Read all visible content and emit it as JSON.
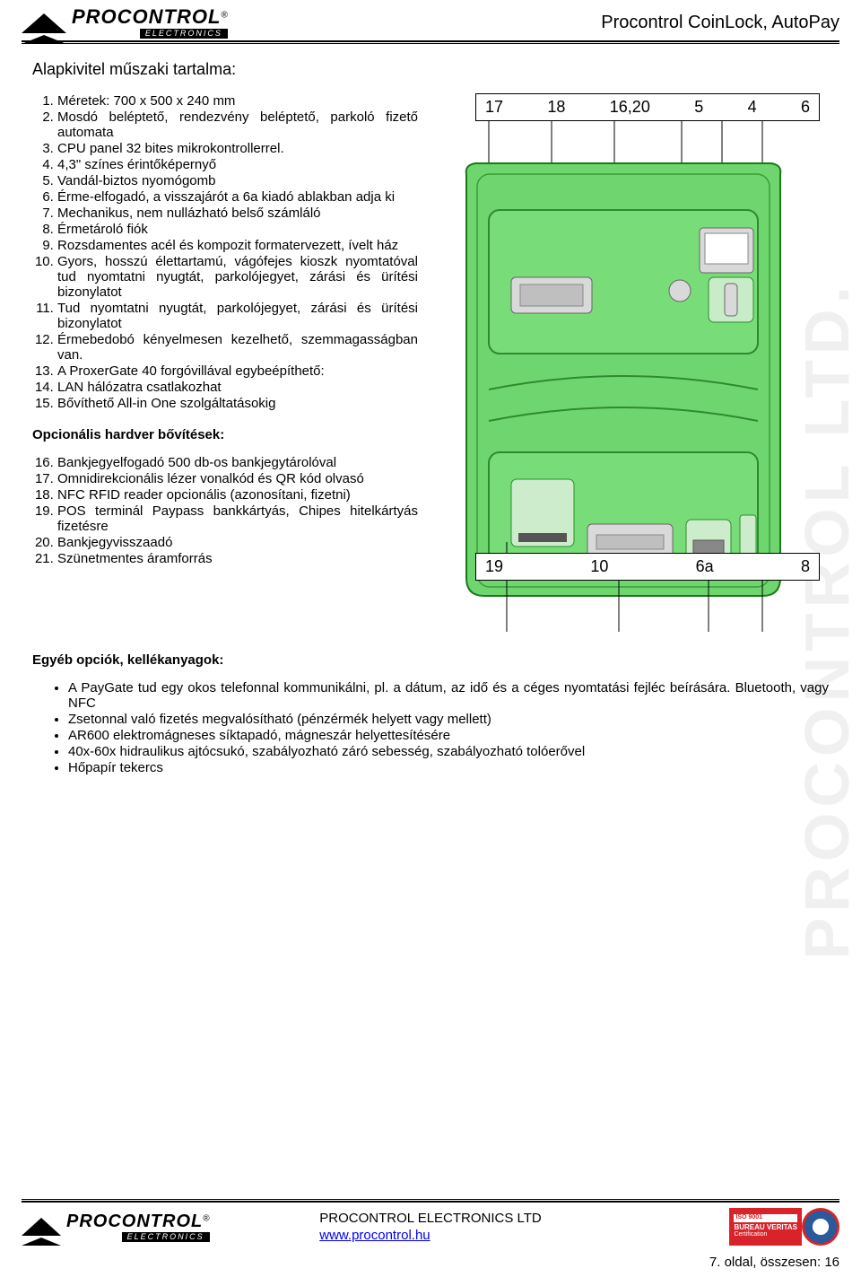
{
  "header": {
    "brand_main": "PROCONTROL",
    "brand_sub": "ELECTRONICS",
    "brand_reg": "®",
    "title": "Procontrol CoinLock, AutoPay"
  },
  "watermark": "PROCONTROL LTD.",
  "section1": {
    "title": "Alapkivitel műszaki tartalma:",
    "items": [
      "Méretek: 700 x 500 x 240 mm",
      "Mosdó beléptető, rendezvény beléptető, parkoló fizető automata",
      "CPU panel 32 bites mikrokontrollerrel.",
      "4,3\" színes érintőképernyő",
      "Vandál-biztos nyomógomb",
      "Érme-elfogadó, a visszajárót a 6a kiadó ablakban adja ki",
      "Mechanikus, nem nullázható belső számláló",
      "Érmetároló fiók",
      "Rozsdamentes acél és kompozit formatervezett, ívelt ház",
      "Gyors, hosszú élettartamú, vágófejes kioszk nyomtatóval tud nyomtatni nyugtát, parkolójegyet, zárási és ürítési bizonylatot",
      "Tud nyomtatni nyugtát, parkolójegyet, zárási és ürítési bizonylatot",
      "Érmebedobó kényelmesen kezelhető, szemmagasságban van.",
      "A ProxerGate 40 forgóvillával egybeépíthető:",
      "LAN hálózatra csatlakozhat",
      "Bővíthető All-in One szolgáltatásokig"
    ]
  },
  "section2": {
    "title": "Opcionális hardver bővítések:",
    "items": [
      "Bankjegyelfogadó 500 db-os bankjegytárolóval",
      "Omnidirekcionális lézer vonalkód és QR kód olvasó",
      "NFC RFID reader opcionális (azonosítani, fizetni)",
      "POS terminál Paypass bankkártyás, Chipes hitelkártyás fizetésre",
      "Bankjegyvisszaadó",
      "Szünetmentes áramforrás"
    ]
  },
  "section3": {
    "title": "Egyéb opciók, kellékanyagok:",
    "items": [
      "A PayGate tud egy okos telefonnal kommunikálni, pl. a dátum, az idő és a céges nyomtatási fejléc beírására.  Bluetooth, vagy NFC",
      "Zsetonnal való fizetés megvalósítható (pénzérmék helyett vagy mellett)",
      "AR600 elektromágneses síktapadó, mágneszár helyettesítésére",
      "40x-60x hidraulikus ajtócsukó, szabályozható záró sebesség, szabályozható tolóerővel",
      "Hőpapír tekercs"
    ]
  },
  "diagram": {
    "top_labels": [
      "17",
      "18",
      "16,20",
      "5",
      "4",
      "6"
    ],
    "bottom_labels": [
      "19",
      "10",
      "6a",
      "8"
    ],
    "body_fill": "#6fd66f",
    "body_stroke": "#1a7a1a",
    "panel_fill": "#d9d9d9",
    "panel_stroke": "#666666",
    "leader_stroke": "#000000"
  },
  "footer": {
    "company": "PROCONTROL ELECTRONICS LTD",
    "url_text": "www.procontrol.hu",
    "cert_iso": "ISO 9001",
    "cert_bv": "BUREAU VERITAS",
    "cert_sub": "Certification",
    "page_label": "7. oldal, összesen: 16"
  }
}
